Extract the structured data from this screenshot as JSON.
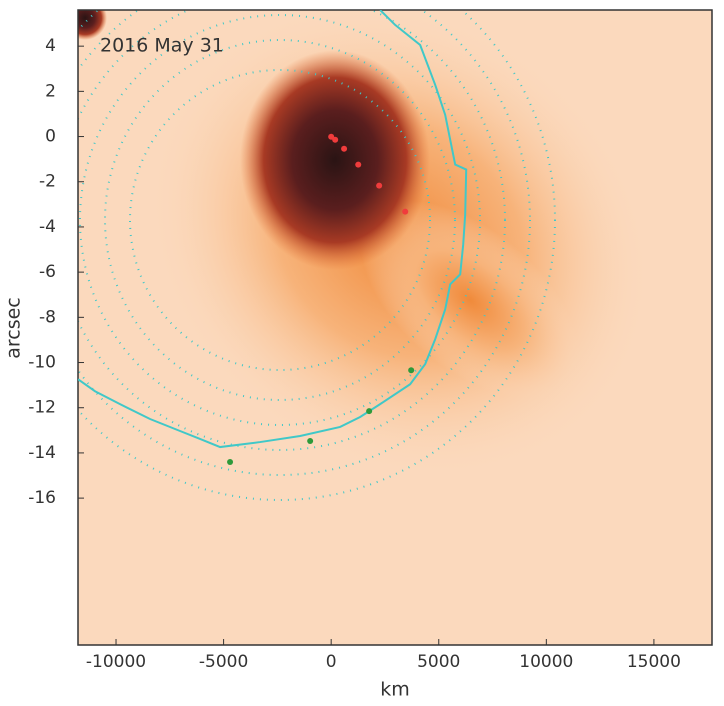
{
  "chart_data": {
    "type": "scatter",
    "annotation": "2016 May 31",
    "xlabel": "km",
    "ylabel": "arcsec",
    "xlim": [
      -11767,
      17700
    ],
    "ylim": [
      -22.5,
      5.6
    ],
    "xticks": [
      -10000,
      -5000,
      0,
      5000,
      10000,
      15000
    ],
    "yticks": [
      4,
      2,
      0,
      -2,
      -4,
      -6,
      -8,
      -10,
      -12,
      -14,
      -16
    ],
    "line": {
      "color": "#40c8c8",
      "x": [
        -11767,
        -10976,
        -9814,
        -8419,
        -7024,
        -6094,
        -5164,
        -3304,
        -1444,
        416,
        1346,
        2276,
        3671,
        4369,
        4834,
        5299,
        5531,
        5996,
        6136,
        6229,
        6276,
        5764,
        5299,
        4834,
        4136,
        2974,
        2276
      ],
      "y": [
        -10.74,
        -11.27,
        -11.84,
        -12.5,
        -13.03,
        -13.38,
        -13.74,
        -13.52,
        -13.25,
        -12.85,
        -12.41,
        -11.84,
        -10.96,
        -10.07,
        -8.97,
        -7.65,
        -6.54,
        -6.1,
        -4.78,
        -3.45,
        -1.46,
        -1.24,
        0.96,
        2.29,
        4.05,
        4.94,
        5.6
      ]
    },
    "series": [
      {
        "color": "#2e9a3a",
        "x": [
          -4700,
          -977,
          1764,
          3718
        ],
        "y": [
          -14.4,
          -13.47,
          -12.15,
          -10.34
        ]
      },
      {
        "color": "#f03c3c",
        "x": [
          0,
          186,
          600,
          1258,
          2230,
          3440
        ],
        "y": [
          -0.01,
          -0.14,
          -0.54,
          -1.24,
          -2.17,
          -3.32
        ]
      }
    ]
  }
}
